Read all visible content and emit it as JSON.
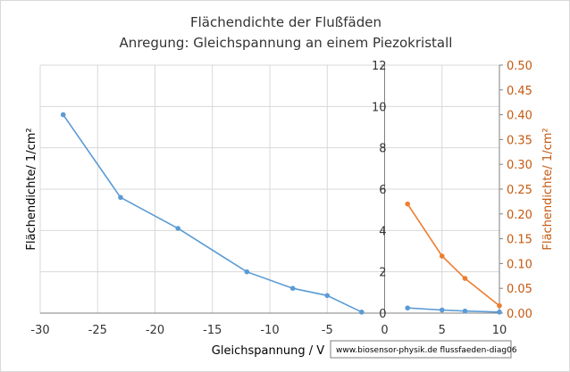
{
  "chart_data": {
    "type": "line",
    "title": "Flächendichte der Flußfäden",
    "subtitle": "Anregung:  Gleichspannung  an einem Piezokristall",
    "xlabel": "Gleichspannung / V",
    "ylabel_left": "Flächendichte/ 1/cm²",
    "ylabel_right": "Flächendichte/ 1/cm²",
    "xlim": [
      -30,
      10
    ],
    "ylim_left": [
      0,
      12
    ],
    "ylim_right": [
      0,
      0.5
    ],
    "x_ticks": [
      "-30",
      "-25",
      "-20",
      "-15",
      "-10",
      "-5",
      "0",
      "5",
      "10"
    ],
    "y_ticks_left": [
      "0",
      "2",
      "4",
      "6",
      "8",
      "10",
      "12"
    ],
    "y_ticks_right": [
      "0.00",
      "0.05",
      "0.10",
      "0.15",
      "0.20",
      "0.25",
      "0.30",
      "0.35",
      "0.40",
      "0.45",
      "0.50"
    ],
    "grid": true,
    "series": [
      {
        "color": "#5b9bd5",
        "axis": "left",
        "x": [
          -28,
          -23,
          -18,
          -12,
          -8,
          -5,
          -2
        ],
        "y": [
          9.6,
          5.6,
          4.1,
          2.0,
          1.2,
          0.85,
          0.05
        ]
      },
      {
        "color": "#5b9bd5",
        "axis": "left",
        "x": [
          2,
          5,
          7,
          10
        ],
        "y": [
          0.25,
          0.15,
          0.1,
          0.05
        ]
      },
      {
        "color": "#ed7d31",
        "axis": "right",
        "x": [
          2,
          5,
          7,
          10
        ],
        "y": [
          0.22,
          0.115,
          0.07,
          0.015
        ]
      }
    ]
  },
  "watermark": "www.biosensor-physik.de  flussfaeden-diag06"
}
